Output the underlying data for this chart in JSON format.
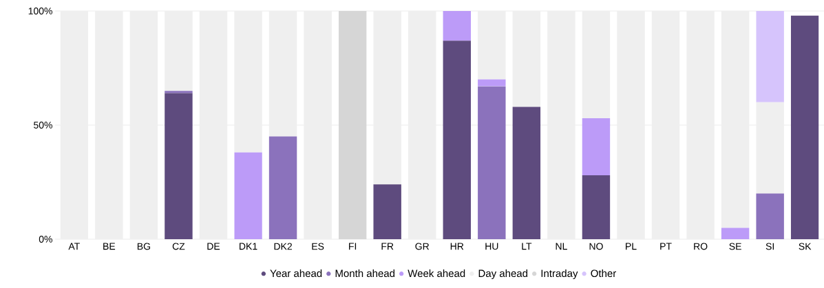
{
  "chart_data": {
    "type": "bar",
    "stacked": true,
    "categories": [
      "AT",
      "BE",
      "BG",
      "CZ",
      "DE",
      "DK1",
      "DK2",
      "ES",
      "FI",
      "FR",
      "GR",
      "HR",
      "HU",
      "LT",
      "NL",
      "NO",
      "PL",
      "PT",
      "RO",
      "SE",
      "SI",
      "SK"
    ],
    "series": [
      {
        "name": "Year ahead",
        "color": "#5e4b7e",
        "values": [
          0,
          0,
          0,
          64,
          0,
          0,
          0,
          0,
          0,
          24,
          0,
          87,
          0,
          58,
          0,
          28,
          0,
          0,
          0,
          0,
          0,
          98
        ]
      },
      {
        "name": "Month ahead",
        "color": "#8b72bc",
        "values": [
          0,
          0,
          0,
          1,
          0,
          0,
          45,
          0,
          0,
          0,
          0,
          0,
          67,
          0,
          0,
          0,
          0,
          0,
          0,
          0,
          20,
          0
        ]
      },
      {
        "name": "Week ahead",
        "color": "#bc9bf8",
        "values": [
          0,
          0,
          0,
          0,
          0,
          38,
          0,
          0,
          0,
          0,
          0,
          13,
          3,
          0,
          0,
          25,
          0,
          0,
          0,
          5,
          0,
          0
        ]
      },
      {
        "name": "Day ahead",
        "color": "#efefef",
        "values": [
          100,
          100,
          100,
          35,
          100,
          62,
          55,
          100,
          0,
          76,
          100,
          0,
          30,
          42,
          100,
          47,
          100,
          100,
          100,
          95,
          40,
          0
        ]
      },
      {
        "name": "Intraday",
        "color": "#d6d6d6",
        "values": [
          0,
          0,
          0,
          0,
          0,
          0,
          0,
          0,
          100,
          0,
          0,
          0,
          0,
          0,
          0,
          0,
          0,
          0,
          0,
          0,
          0,
          0
        ]
      },
      {
        "name": "Other",
        "color": "#d6c4fc",
        "values": [
          0,
          0,
          0,
          0,
          0,
          0,
          0,
          0,
          0,
          0,
          0,
          0,
          0,
          0,
          0,
          0,
          0,
          0,
          0,
          0,
          40,
          0
        ]
      }
    ],
    "ylim": [
      0,
      100
    ],
    "yticks": [
      {
        "value": 0,
        "label": "0%"
      },
      {
        "value": 50,
        "label": "50%"
      },
      {
        "value": 100,
        "label": "100%"
      }
    ],
    "grid": "y",
    "legend": "bottom",
    "marker": "circle"
  }
}
